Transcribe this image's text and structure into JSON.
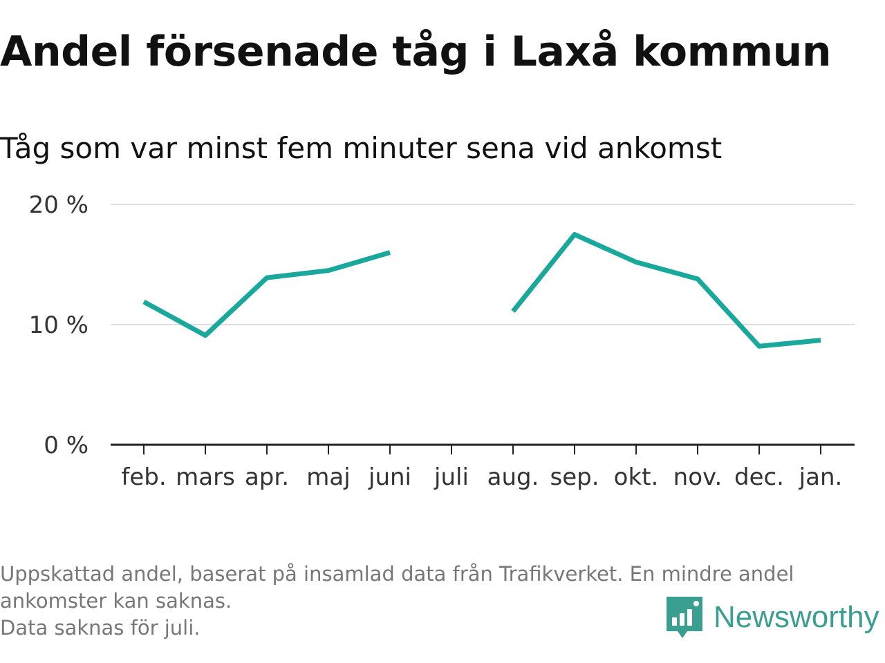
{
  "chart_data": {
    "type": "line",
    "title": "Andel försenade tåg i Laxå kommun",
    "subtitle": "Tåg som var minst fem minuter sena vid ankomst",
    "categories": [
      "feb.",
      "mars",
      "apr.",
      "maj",
      "juni",
      "juli",
      "aug.",
      "sep.",
      "okt.",
      "nov.",
      "dec.",
      "jan."
    ],
    "series": [
      {
        "values": [
          11.9,
          9.1,
          13.9,
          14.5,
          16.0,
          null,
          11.1,
          17.5,
          15.2,
          13.8,
          8.2,
          8.7
        ],
        "color": "#1aa89c"
      }
    ],
    "ylim": [
      0,
      20
    ],
    "yticks": [
      0,
      10,
      20
    ],
    "ytick_labels": [
      "0 %",
      "10 %",
      "20 %"
    ],
    "grid": true,
    "gridline_color": "#dddddd",
    "axis_color": "#222222"
  },
  "footnote": {
    "line1": "Uppskattad andel, baserat på insamlad data från Trafikverket. En mindre andel ankomster kan saknas.",
    "line2": "Data saknas för juli."
  },
  "brand": {
    "name": "Newsworthy",
    "icon": "newsworthy-logo-icon",
    "color": "#3a9e90"
  }
}
